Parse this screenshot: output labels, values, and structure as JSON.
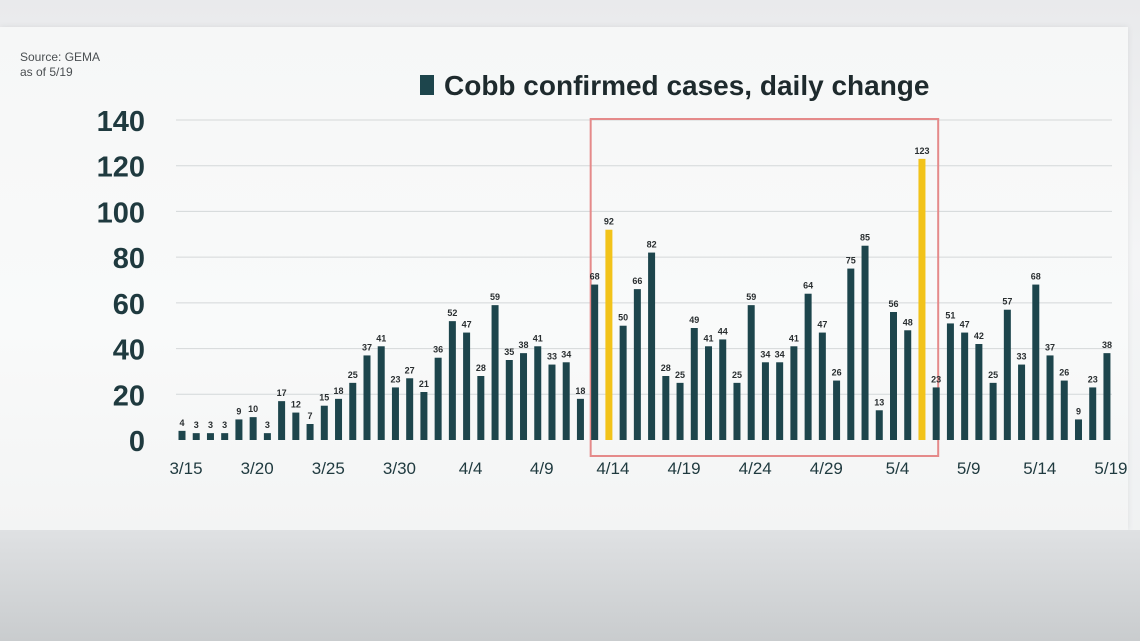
{
  "source": {
    "line1": "Source: GEMA",
    "line2": "as of 5/19"
  },
  "colors": {
    "bar": "#1d454c",
    "highlight": "#f2c31a",
    "box": "#e58a8a",
    "grid": "#d4d7d9"
  },
  "chart_data": {
    "type": "bar",
    "title": "",
    "xlabel": "",
    "ylabel": "",
    "ylim": [
      0,
      140
    ],
    "yticks": [
      0,
      20,
      40,
      60,
      80,
      100,
      120,
      140
    ],
    "grid": true,
    "legend": {
      "position": "top",
      "entries": [
        {
          "name": "Cobb confirmed cases, daily change",
          "color": "#1d454c"
        }
      ]
    },
    "categories": [
      "3/15",
      "3/16",
      "3/17",
      "3/18",
      "3/19",
      "3/20",
      "3/21",
      "3/22",
      "3/23",
      "3/24",
      "3/25",
      "3/26",
      "3/27",
      "3/28",
      "3/29",
      "3/30",
      "3/31",
      "4/1",
      "4/2",
      "4/3",
      "4/4",
      "4/5",
      "4/6",
      "4/7",
      "4/8",
      "4/9",
      "4/10",
      "4/11",
      "4/12",
      "4/13",
      "4/14",
      "4/15",
      "4/16",
      "4/17",
      "4/18",
      "4/19",
      "4/20",
      "4/21",
      "4/22",
      "4/23",
      "4/24",
      "4/25",
      "4/26",
      "4/27",
      "4/28",
      "4/29",
      "4/30",
      "5/1",
      "5/2",
      "5/3",
      "5/4",
      "5/5",
      "5/6",
      "5/7",
      "5/8",
      "5/9",
      "5/10",
      "5/11",
      "5/12",
      "5/13",
      "5/14",
      "5/15",
      "5/16",
      "5/17",
      "5/18",
      "5/19"
    ],
    "x_tick_labels": [
      "3/15",
      "3/20",
      "3/25",
      "3/30",
      "4/4",
      "4/9",
      "4/14",
      "4/19",
      "4/24",
      "4/29",
      "5/4",
      "5/9",
      "5/14",
      "5/19"
    ],
    "series": [
      {
        "name": "Cobb confirmed cases, daily change",
        "values": [
          4,
          3,
          3,
          3,
          9,
          10,
          3,
          17,
          12,
          7,
          15,
          18,
          25,
          37,
          41,
          23,
          27,
          21,
          36,
          52,
          47,
          28,
          59,
          35,
          38,
          41,
          33,
          34,
          18,
          68,
          92,
          50,
          66,
          82,
          28,
          25,
          49,
          41,
          44,
          25,
          59,
          34,
          34,
          41,
          64,
          47,
          26,
          75,
          85,
          13,
          56,
          48,
          123,
          23,
          51,
          47,
          42,
          25,
          57,
          33,
          68,
          37,
          26,
          9,
          23,
          38
        ],
        "highlighted_indices": [
          30,
          52
        ]
      }
    ],
    "annotations": [
      {
        "type": "box",
        "from": "4/13",
        "to": "5/7"
      }
    ]
  }
}
